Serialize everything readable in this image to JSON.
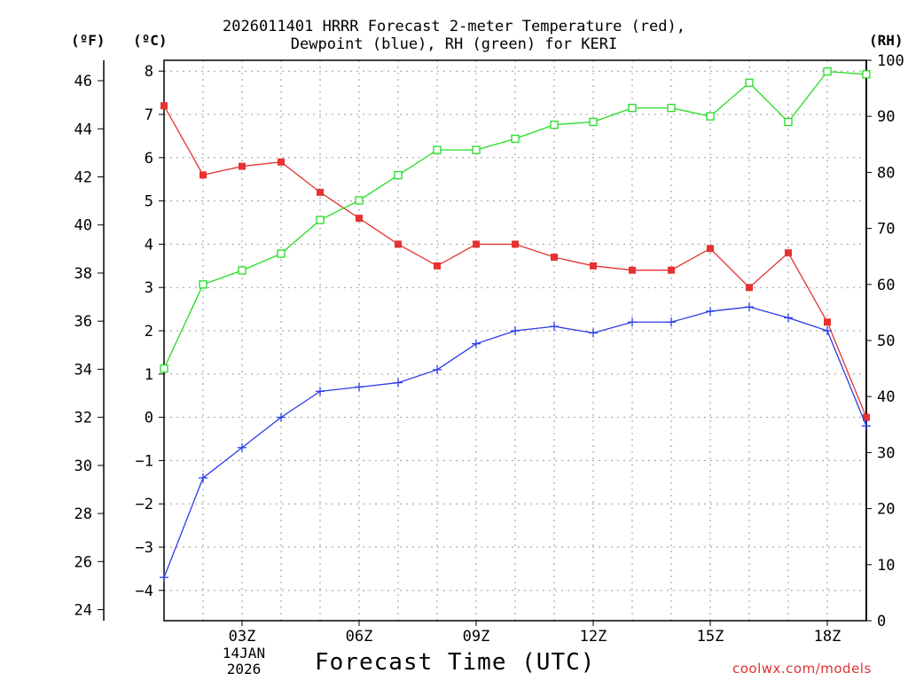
{
  "chart_data": {
    "type": "line",
    "title_line1": "2026011401 HRRR Forecast 2-meter Temperature (red),",
    "title_line2": "Dewpoint (blue), RH (green) for KERI",
    "xlabel": "Forecast Time (UTC)",
    "date_line1": "14JAN",
    "date_line2": "2026",
    "credit": "coolwx.com/models",
    "unit_left_f": "(ºF)",
    "unit_left_c": "(ºC)",
    "unit_right": "(RH)",
    "x_hours": [
      1,
      2,
      3,
      4,
      5,
      6,
      7,
      8,
      9,
      10,
      11,
      12,
      13,
      14,
      15,
      16,
      17,
      18,
      19
    ],
    "x_ticks": [
      3,
      6,
      9,
      12,
      15,
      18
    ],
    "x_tick_labels": [
      "03Z",
      "06Z",
      "09Z",
      "12Z",
      "15Z",
      "18Z"
    ],
    "x_range": [
      1,
      19
    ],
    "c_range": [
      -4.7,
      8.25
    ],
    "c_ticks": [
      -4,
      -3,
      -2,
      -1,
      0,
      1,
      2,
      3,
      4,
      5,
      6,
      7,
      8
    ],
    "f_ticks": [
      24,
      26,
      28,
      30,
      32,
      34,
      36,
      38,
      40,
      42,
      44,
      46
    ],
    "rh_range": [
      0,
      100
    ],
    "rh_ticks": [
      0,
      10,
      20,
      30,
      40,
      50,
      60,
      70,
      80,
      90,
      100
    ],
    "series": [
      {
        "name": "Temperature",
        "color": "#e63232",
        "axis": "c",
        "marker": "filled-square",
        "values": [
          7.2,
          5.6,
          5.8,
          5.9,
          5.2,
          4.6,
          4.0,
          3.5,
          4.0,
          4.0,
          3.7,
          3.5,
          3.4,
          3.4,
          3.9,
          3.0,
          3.8,
          2.2,
          0.0
        ]
      },
      {
        "name": "Dewpoint",
        "color": "#2b3be6",
        "axis": "c",
        "marker": "plus",
        "values": [
          -3.7,
          -1.4,
          -0.7,
          0.0,
          0.6,
          0.7,
          0.8,
          1.1,
          1.7,
          2.0,
          2.1,
          1.95,
          2.2,
          2.2,
          2.45,
          2.55,
          2.3,
          2.0,
          -0.2
        ]
      },
      {
        "name": "RH",
        "color": "#22dd22",
        "axis": "rh",
        "marker": "open-square",
        "values": [
          45,
          60,
          62.5,
          65.5,
          71.5,
          75,
          79.5,
          84,
          84,
          86,
          88.5,
          89,
          91.5,
          91.5,
          90,
          96,
          89,
          98,
          97.5
        ]
      }
    ]
  }
}
